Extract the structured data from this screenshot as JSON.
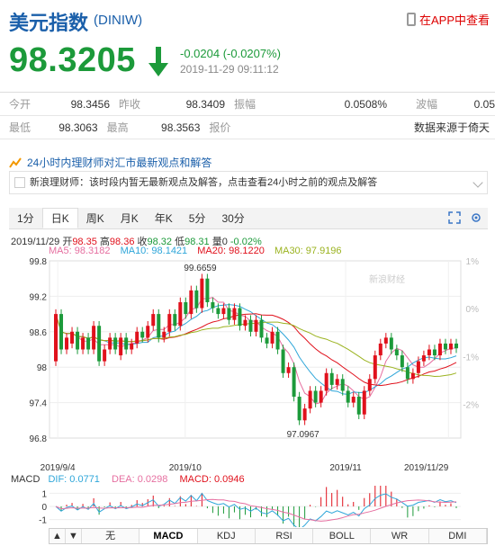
{
  "header": {
    "title": "美元指数",
    "code": "(DINIW)",
    "app_link": "在APP中查看",
    "icon": "phone-icon"
  },
  "quote": {
    "price": "98.3205",
    "change": "-0.0204 (-0.0207%)",
    "time": "2019-11-29 09:11:12",
    "arrow": "down-arrow-icon",
    "color_down": "#1c9a3a",
    "color_up": "#e0111c"
  },
  "table": [
    [
      {
        "l": "今开",
        "v": "98.3456"
      },
      {
        "l": "昨收",
        "v": "98.3409"
      },
      {
        "l": "振幅",
        "v": "0.0508%"
      },
      {
        "l": "波幅",
        "v": "0.05"
      }
    ],
    [
      {
        "l": "最低",
        "v": "98.3063"
      },
      {
        "l": "最高",
        "v": "98.3563"
      },
      {
        "l": "报价",
        "v": "数据来源于倚天"
      },
      {
        "l": "",
        "v": ""
      }
    ]
  ],
  "opinion": {
    "title": "24小时内理财师对汇市最新观点和解答",
    "text": "新浪理财师：该时段内暂无最新观点及解答，点击查看24小时之前的观点及解答"
  },
  "tabs": [
    "1分",
    "日K",
    "周K",
    "月K",
    "年K",
    "5分",
    "30分"
  ],
  "active_tab": "日K",
  "tools": [
    "fullscreen-icon",
    "settings-icon"
  ],
  "kinfo": {
    "date": "2019/11/29",
    "open_l": "开",
    "open": "98.35",
    "high_l": "高",
    "high": "98.36",
    "close_l": "收",
    "close": "98.32",
    "low_l": "低",
    "low": "98.31",
    "vol_l": "量",
    "vol": "0",
    "chg": "-0.02%",
    "ma5": "MA5: 98.3182",
    "ma10": "MA10: 98.1421",
    "ma20": "MA20: 98.1220",
    "ma30": "MA30: 97.9196"
  },
  "chart_data": {
    "type": "candlestick",
    "ylim": [
      96.8,
      99.8
    ],
    "y_ticks": [
      "99.8",
      "99.2",
      "98.6",
      "98",
      "97.4",
      "96.8"
    ],
    "right_ticks": [
      "1%",
      "0%",
      "-1%",
      "-2%"
    ],
    "x_labels": [
      "2019/9/4",
      "2019/10",
      "2019/11",
      "2019/11/29"
    ],
    "max_label": "99.6659",
    "min_label": "97.0967",
    "watermark": "新浪财经",
    "series_colors": {
      "ma5": "#e66fa0",
      "ma10": "#2ea6d9",
      "ma20": "#e0111c",
      "ma30": "#9bb320"
    },
    "candles": [
      [
        98.1,
        98.9
      ],
      [
        98.9,
        98.3
      ],
      [
        98.3,
        98.5
      ],
      [
        98.4,
        98.6
      ],
      [
        98.6,
        98.3
      ],
      [
        98.3,
        98.5
      ],
      [
        98.5,
        98.3
      ],
      [
        98.3,
        98.7
      ],
      [
        98.7,
        98.1
      ],
      [
        98.1,
        98.3
      ],
      [
        98.3,
        98.5
      ],
      [
        98.5,
        98.3
      ],
      [
        98.2,
        98.5
      ],
      [
        98.5,
        98.3
      ],
      [
        98.3,
        98.4
      ],
      [
        98.4,
        98.6
      ],
      [
        98.6,
        98.5
      ],
      [
        98.5,
        98.7
      ],
      [
        98.7,
        98.9
      ],
      [
        98.9,
        98.5
      ],
      [
        98.5,
        98.6
      ],
      [
        98.6,
        98.9
      ],
      [
        98.9,
        98.7
      ],
      [
        98.7,
        99.1
      ],
      [
        99.1,
        98.9
      ],
      [
        98.9,
        99.3
      ],
      [
        99.3,
        99.0
      ],
      [
        99.0,
        99.5
      ],
      [
        99.5,
        99.1
      ],
      [
        99.1,
        99.0
      ],
      [
        99.0,
        98.9
      ],
      [
        98.9,
        99.0
      ],
      [
        99.0,
        98.8
      ],
      [
        98.8,
        99.0
      ],
      [
        99.0,
        98.7
      ],
      [
        98.7,
        98.8
      ],
      [
        98.8,
        98.6
      ],
      [
        98.6,
        98.8
      ],
      [
        98.8,
        98.5
      ],
      [
        98.5,
        98.4
      ],
      [
        98.4,
        98.6
      ],
      [
        98.6,
        98.3
      ],
      [
        98.3,
        97.9
      ],
      [
        97.9,
        98.0
      ],
      [
        98.0,
        97.5
      ],
      [
        97.5,
        97.1
      ],
      [
        97.1,
        97.3
      ],
      [
        97.3,
        97.6
      ],
      [
        97.6,
        97.4
      ],
      [
        97.4,
        97.6
      ],
      [
        97.6,
        97.9
      ],
      [
        97.9,
        97.7
      ],
      [
        97.7,
        97.8
      ],
      [
        97.8,
        97.6
      ],
      [
        97.6,
        97.4
      ],
      [
        97.4,
        97.5
      ],
      [
        97.5,
        97.2
      ],
      [
        97.2,
        97.6
      ],
      [
        97.6,
        97.8
      ],
      [
        97.8,
        98.2
      ],
      [
        98.2,
        98.4
      ],
      [
        98.4,
        98.5
      ],
      [
        98.5,
        98.3
      ],
      [
        98.3,
        98.2
      ],
      [
        98.2,
        98.0
      ],
      [
        98.0,
        97.8
      ],
      [
        97.8,
        97.9
      ],
      [
        97.9,
        98.1
      ],
      [
        98.1,
        98.2
      ],
      [
        98.2,
        98.3
      ],
      [
        98.3,
        98.2
      ],
      [
        98.2,
        98.4
      ],
      [
        98.4,
        98.3
      ],
      [
        98.3,
        98.4
      ],
      [
        98.4,
        98.32
      ]
    ],
    "macd": {
      "dif_l": "DIF: 0.0771",
      "dea_l": "DEA: 0.0298",
      "macd_l": "MACD: 0.0946",
      "y_ticks": [
        "1",
        "0",
        "-1"
      ]
    }
  },
  "bottom_tabs": [
    "无",
    "MACD",
    "KDJ",
    "RSI",
    "BOLL",
    "WR",
    "DMI"
  ],
  "bottom_active": "MACD"
}
